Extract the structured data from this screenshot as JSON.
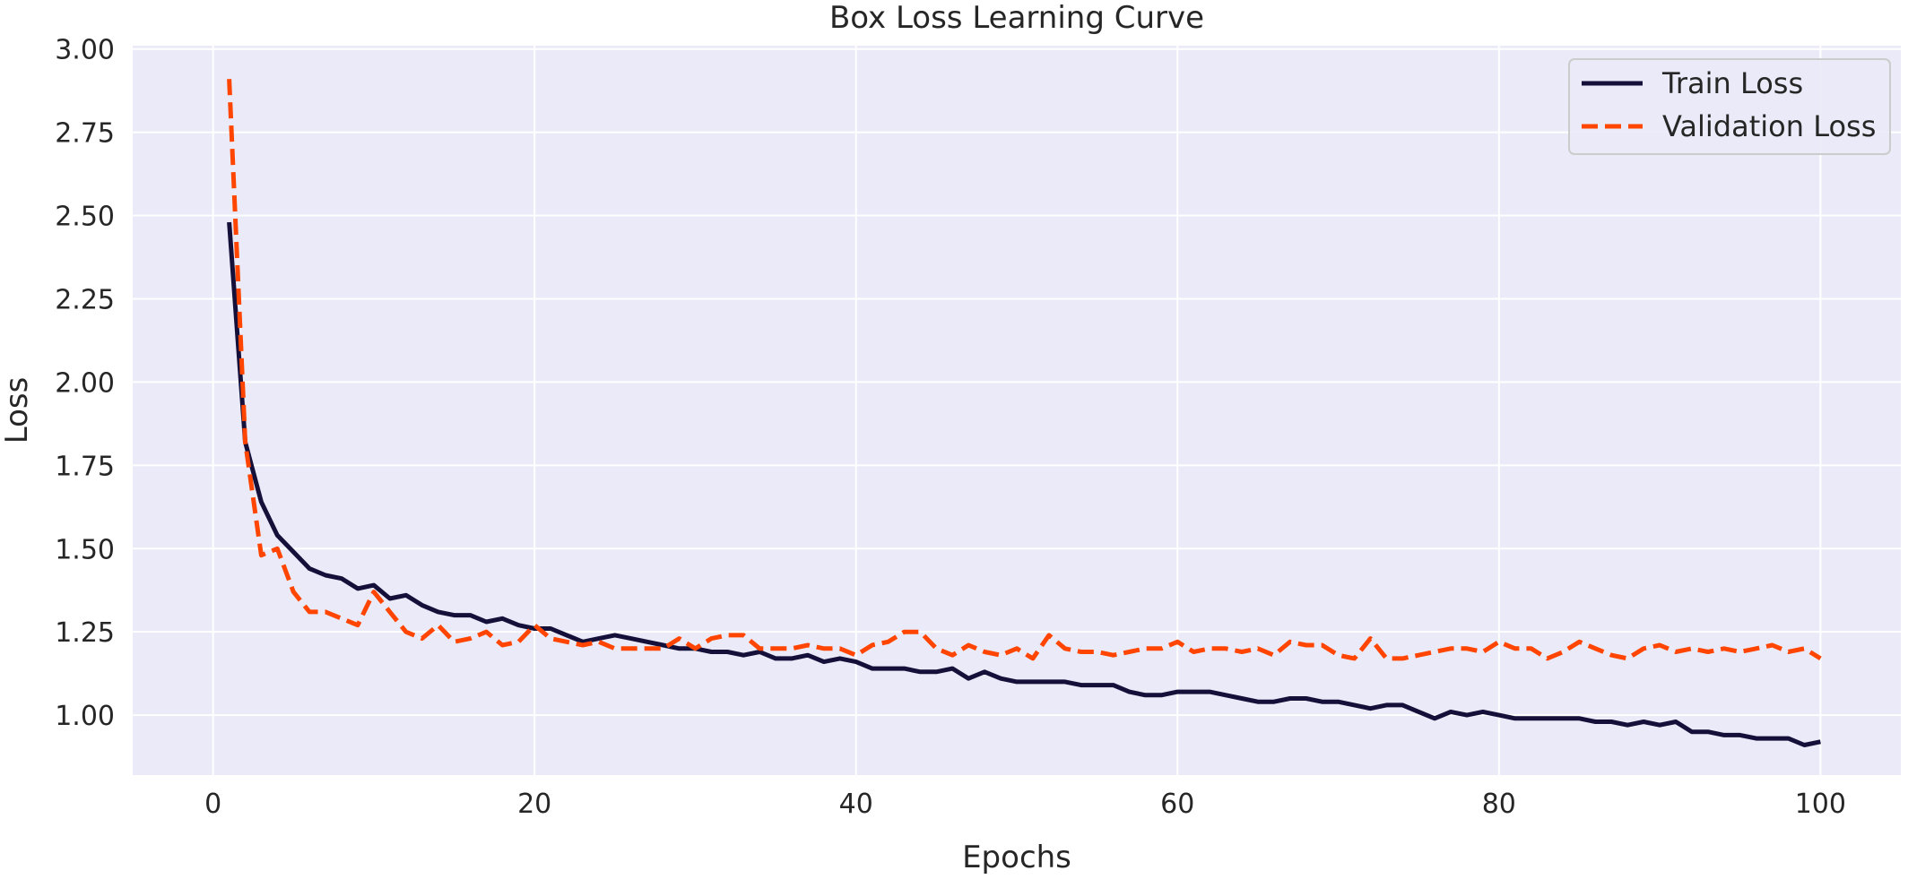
{
  "chart_data": {
    "type": "line",
    "title": "Box Loss Learning Curve",
    "xlabel": "Epochs",
    "ylabel": "Loss",
    "xlim": [
      -5,
      105
    ],
    "ylim": [
      0.82,
      3.01
    ],
    "xticks": [
      0,
      20,
      40,
      60,
      80,
      100
    ],
    "xtick_labels": [
      "0",
      "20",
      "40",
      "60",
      "80",
      "100"
    ],
    "yticks": [
      1.0,
      1.25,
      1.5,
      1.75,
      2.0,
      2.25,
      2.5,
      2.75,
      3.0
    ],
    "ytick_labels": [
      "1.00",
      "1.25",
      "1.50",
      "1.75",
      "2.00",
      "2.25",
      "2.50",
      "2.75",
      "3.00"
    ],
    "grid": true,
    "legend_position": "top-right",
    "background_color": "#EAEAF8",
    "x": [
      1,
      2,
      3,
      4,
      5,
      6,
      7,
      8,
      9,
      10,
      11,
      12,
      13,
      14,
      15,
      16,
      17,
      18,
      19,
      20,
      21,
      22,
      23,
      24,
      25,
      26,
      27,
      28,
      29,
      30,
      31,
      32,
      33,
      34,
      35,
      36,
      37,
      38,
      39,
      40,
      41,
      42,
      43,
      44,
      45,
      46,
      47,
      48,
      49,
      50,
      51,
      52,
      53,
      54,
      55,
      56,
      57,
      58,
      59,
      60,
      61,
      62,
      63,
      64,
      65,
      66,
      67,
      68,
      69,
      70,
      71,
      72,
      73,
      74,
      75,
      76,
      77,
      78,
      79,
      80,
      81,
      82,
      83,
      84,
      85,
      86,
      87,
      88,
      89,
      90,
      91,
      92,
      93,
      94,
      95,
      96,
      97,
      98,
      99,
      100
    ],
    "series": [
      {
        "name": "Train Loss",
        "color": "#15103A",
        "style": "solid",
        "values": [
          2.48,
          1.82,
          1.64,
          1.54,
          1.49,
          1.44,
          1.42,
          1.41,
          1.38,
          1.39,
          1.35,
          1.36,
          1.33,
          1.31,
          1.3,
          1.3,
          1.28,
          1.29,
          1.27,
          1.26,
          1.26,
          1.24,
          1.22,
          1.23,
          1.24,
          1.23,
          1.22,
          1.21,
          1.2,
          1.2,
          1.19,
          1.19,
          1.18,
          1.19,
          1.17,
          1.17,
          1.18,
          1.16,
          1.17,
          1.16,
          1.14,
          1.14,
          1.14,
          1.13,
          1.13,
          1.14,
          1.11,
          1.13,
          1.11,
          1.1,
          1.1,
          1.1,
          1.1,
          1.09,
          1.09,
          1.09,
          1.07,
          1.06,
          1.06,
          1.07,
          1.07,
          1.07,
          1.06,
          1.05,
          1.04,
          1.04,
          1.05,
          1.05,
          1.04,
          1.04,
          1.03,
          1.02,
          1.03,
          1.03,
          1.01,
          0.99,
          1.01,
          1.0,
          1.01,
          1.0,
          0.99,
          0.99,
          0.99,
          0.99,
          0.99,
          0.98,
          0.98,
          0.97,
          0.98,
          0.97,
          0.98,
          0.95,
          0.95,
          0.94,
          0.94,
          0.93,
          0.93,
          0.93,
          0.91,
          0.92
        ]
      },
      {
        "name": "Validation Loss",
        "color": "#FF4500",
        "style": "dashed",
        "values": [
          2.91,
          1.82,
          1.48,
          1.5,
          1.37,
          1.31,
          1.31,
          1.29,
          1.27,
          1.37,
          1.31,
          1.25,
          1.23,
          1.27,
          1.22,
          1.23,
          1.25,
          1.21,
          1.22,
          1.27,
          1.23,
          1.22,
          1.21,
          1.22,
          1.2,
          1.2,
          1.2,
          1.2,
          1.23,
          1.2,
          1.23,
          1.24,
          1.24,
          1.2,
          1.2,
          1.2,
          1.21,
          1.2,
          1.2,
          1.18,
          1.21,
          1.22,
          1.25,
          1.25,
          1.2,
          1.18,
          1.21,
          1.19,
          1.18,
          1.2,
          1.17,
          1.24,
          1.2,
          1.19,
          1.19,
          1.18,
          1.19,
          1.2,
          1.2,
          1.22,
          1.19,
          1.2,
          1.2,
          1.19,
          1.2,
          1.18,
          1.22,
          1.21,
          1.21,
          1.18,
          1.17,
          1.23,
          1.17,
          1.17,
          1.18,
          1.19,
          1.2,
          1.2,
          1.19,
          1.22,
          1.2,
          1.2,
          1.17,
          1.19,
          1.22,
          1.2,
          1.18,
          1.17,
          1.2,
          1.21,
          1.19,
          1.2,
          1.19,
          1.2,
          1.19,
          1.2,
          1.21,
          1.19,
          1.2,
          1.17
        ]
      }
    ]
  }
}
